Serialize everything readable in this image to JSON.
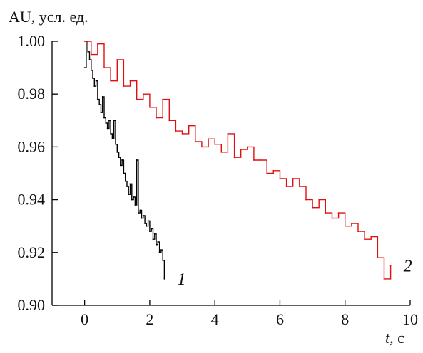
{
  "chart_data": {
    "type": "line",
    "title": "",
    "ylabel": "AU, усл. ед.",
    "xlabel": {
      "var": "t",
      "unit": ", с"
    },
    "xlim": [
      -1,
      10
    ],
    "ylim": [
      0.9,
      1.0
    ],
    "xticks": [
      0,
      2,
      4,
      6,
      8,
      10
    ],
    "yticks": [
      0.9,
      0.92,
      0.94,
      0.96,
      0.98,
      1.0
    ],
    "xtick_labels": [
      "0",
      "2",
      "4",
      "6",
      "8",
      "10"
    ],
    "ytick_labels": [
      "0.90",
      "0.92",
      "0.94",
      "0.96",
      "0.98",
      "1.00"
    ],
    "grid": false,
    "series": [
      {
        "label": "1",
        "color": "#000000",
        "x": [
          0.0,
          0.05,
          0.1,
          0.15,
          0.2,
          0.25,
          0.3,
          0.35,
          0.4,
          0.45,
          0.5,
          0.55,
          0.6,
          0.65,
          0.7,
          0.75,
          0.8,
          0.85,
          0.9,
          0.95,
          1.0,
          1.05,
          1.1,
          1.15,
          1.2,
          1.25,
          1.3,
          1.35,
          1.4,
          1.45,
          1.5,
          1.55,
          1.6,
          1.65,
          1.7,
          1.75,
          1.8,
          1.85,
          1.9,
          1.95,
          2.0,
          2.05,
          2.1,
          2.15,
          2.2,
          2.25,
          2.3,
          2.35,
          2.4,
          2.45
        ],
        "y": [
          0.99,
          1.0,
          0.996,
          0.993,
          0.989,
          0.986,
          0.983,
          0.985,
          0.978,
          0.976,
          0.973,
          0.979,
          0.971,
          0.969,
          0.967,
          0.97,
          0.965,
          0.963,
          0.97,
          0.961,
          0.958,
          0.956,
          0.953,
          0.955,
          0.95,
          0.947,
          0.945,
          0.942,
          0.946,
          0.94,
          0.941,
          0.938,
          0.955,
          0.935,
          0.936,
          0.933,
          0.934,
          0.931,
          0.93,
          0.932,
          0.928,
          0.929,
          0.925,
          0.927,
          0.923,
          0.924,
          0.92,
          0.921,
          0.917,
          0.91
        ]
      },
      {
        "label": "2",
        "color": "#e01010",
        "x": [
          0.0,
          0.2,
          0.4,
          0.6,
          0.8,
          1.0,
          1.2,
          1.4,
          1.6,
          1.8,
          2.0,
          2.2,
          2.4,
          2.6,
          2.8,
          3.0,
          3.2,
          3.4,
          3.6,
          3.8,
          4.0,
          4.2,
          4.4,
          4.6,
          4.8,
          5.0,
          5.2,
          5.4,
          5.6,
          5.8,
          6.0,
          6.2,
          6.4,
          6.6,
          6.8,
          7.0,
          7.2,
          7.4,
          7.6,
          7.8,
          8.0,
          8.2,
          8.4,
          8.6,
          8.8,
          9.0,
          9.2,
          9.4
        ],
        "y": [
          1.0,
          0.995,
          0.999,
          0.99,
          0.985,
          0.993,
          0.983,
          0.985,
          0.978,
          0.98,
          0.975,
          0.971,
          0.978,
          0.97,
          0.966,
          0.965,
          0.968,
          0.962,
          0.96,
          0.963,
          0.961,
          0.958,
          0.965,
          0.956,
          0.959,
          0.96,
          0.955,
          0.955,
          0.95,
          0.951,
          0.948,
          0.945,
          0.948,
          0.945,
          0.94,
          0.937,
          0.94,
          0.935,
          0.933,
          0.935,
          0.93,
          0.931,
          0.928,
          0.925,
          0.926,
          0.918,
          0.91,
          0.915
        ]
      }
    ]
  }
}
